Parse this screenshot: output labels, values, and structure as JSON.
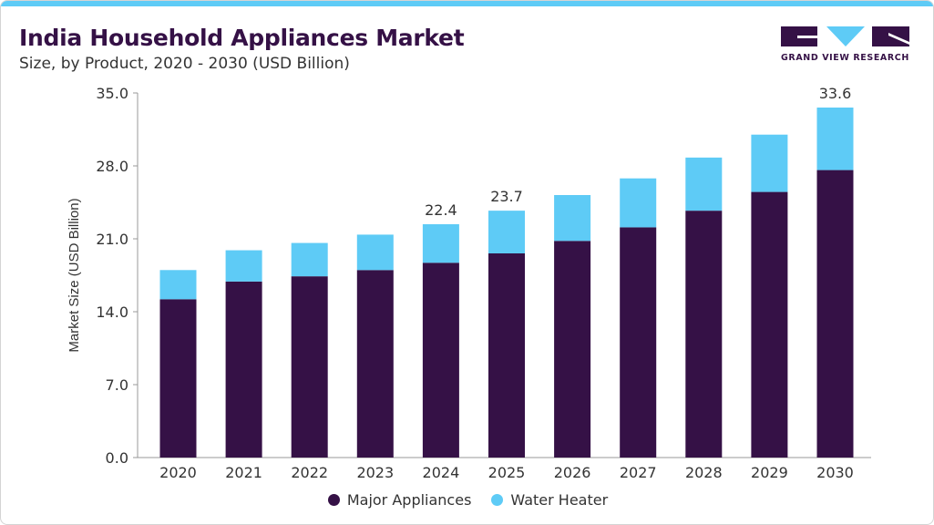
{
  "header": {
    "title": "India Household Appliances Market",
    "subtitle": "Size, by Product, 2020 - 2030 (USD Billion)",
    "logo_text": "GRAND VIEW RESEARCH"
  },
  "colors": {
    "major": "#351146",
    "water": "#5ecbf6",
    "accent_bar": "#5ecbf6"
  },
  "chart_data": {
    "type": "bar",
    "stacked": true,
    "title": "India Household Appliances Market",
    "subtitle": "Size, by Product, 2020 - 2030 (USD Billion)",
    "xlabel": "",
    "ylabel": "Market Size (USD Billion)",
    "ylim": [
      0,
      35
    ],
    "yticks": [
      "0.0",
      "7.0",
      "14.0",
      "21.0",
      "28.0",
      "35.0"
    ],
    "categories": [
      "2020",
      "2021",
      "2022",
      "2023",
      "2024",
      "2025",
      "2026",
      "2027",
      "2028",
      "2029",
      "2030"
    ],
    "series": [
      {
        "name": "Major Appliances",
        "values": [
          15.2,
          16.9,
          17.4,
          18.0,
          18.7,
          19.6,
          20.8,
          22.1,
          23.7,
          25.5,
          27.6
        ]
      },
      {
        "name": "Water Heater",
        "values": [
          2.8,
          3.0,
          3.2,
          3.4,
          3.7,
          4.1,
          4.4,
          4.7,
          5.1,
          5.5,
          6.0
        ]
      }
    ],
    "data_labels": [
      {
        "category": "2024",
        "text": "22.4"
      },
      {
        "category": "2025",
        "text": "23.7"
      },
      {
        "category": "2030",
        "text": "33.6"
      }
    ],
    "grid": false,
    "legend_position": "bottom"
  }
}
